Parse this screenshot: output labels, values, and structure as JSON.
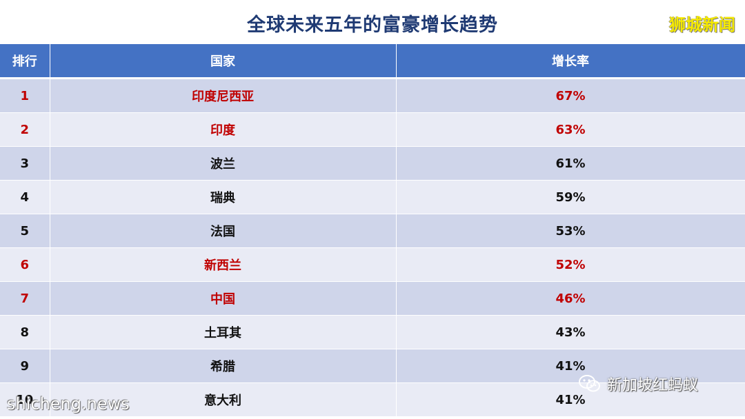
{
  "title": "全球未来五年的富豪增长趋势",
  "brand": "狮城新闻",
  "headers": {
    "rank": "排行",
    "country": "国家",
    "rate": "增长率"
  },
  "rows": [
    {
      "rank": "1",
      "country": "印度尼西亚",
      "rate": "67%"
    },
    {
      "rank": "2",
      "country": "印度",
      "rate": "63%"
    },
    {
      "rank": "3",
      "country": "波兰",
      "rate": "61%"
    },
    {
      "rank": "4",
      "country": "瑞典",
      "rate": "59%"
    },
    {
      "rank": "5",
      "country": "法国",
      "rate": "53%"
    },
    {
      "rank": "6",
      "country": "新西兰",
      "rate": "52%"
    },
    {
      "rank": "7",
      "country": "中国",
      "rate": "46%"
    },
    {
      "rank": "8",
      "country": "土耳其",
      "rate": "43%"
    },
    {
      "rank": "9",
      "country": "希腊",
      "rate": "41%"
    },
    {
      "rank": "10",
      "country": "意大利",
      "rate": "41%"
    }
  ],
  "watermark": "shicheng.news",
  "wechat_account": "新加坡红蚂蚁",
  "colors": {
    "header_bg": "#4472c4",
    "highlight_text": "#c00000",
    "row_dark": "#cfd5ea",
    "row_light": "#e9ebf5",
    "title": "#1f3a73",
    "brand": "#f5e900"
  }
}
